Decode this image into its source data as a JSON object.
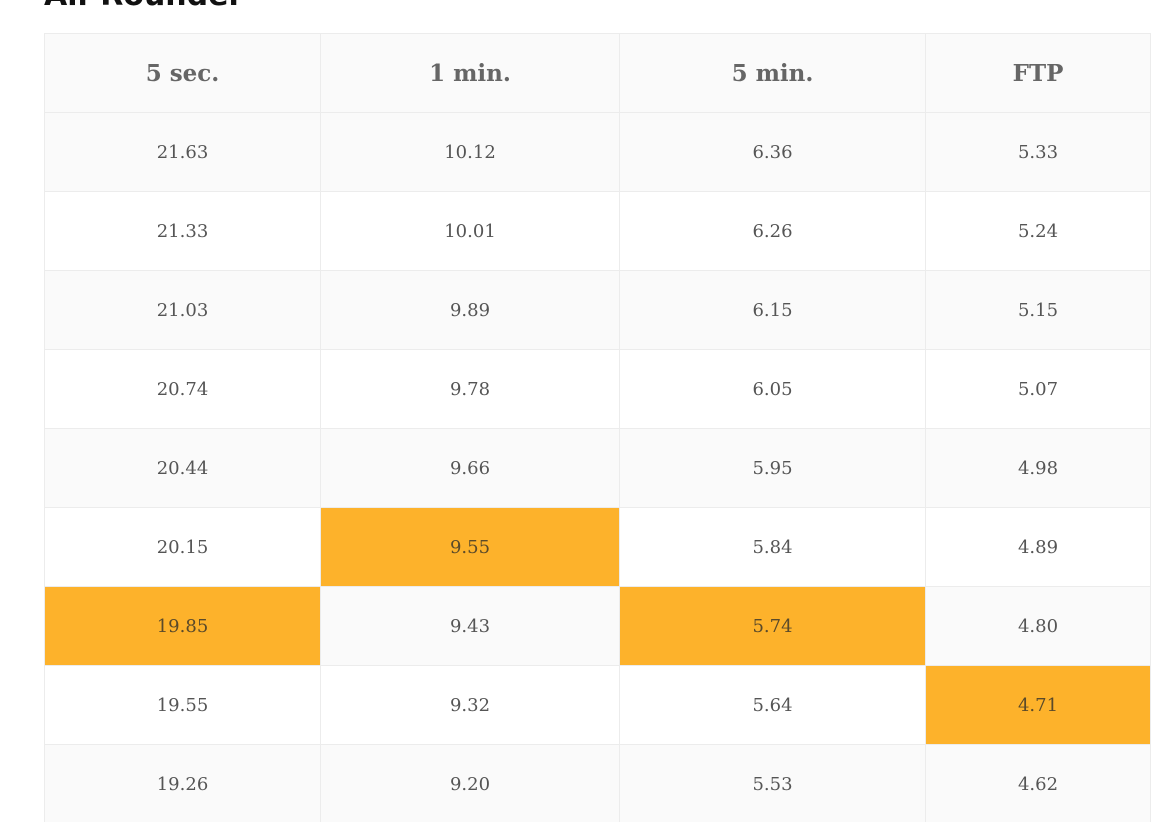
{
  "heading": "All-Rounder",
  "table": {
    "columns": [
      "5 sec.",
      "1 min.",
      "5 min.",
      "FTP"
    ],
    "rows": [
      [
        "21.63",
        "10.12",
        "6.36",
        "5.33"
      ],
      [
        "21.33",
        "10.01",
        "6.26",
        "5.24"
      ],
      [
        "21.03",
        "9.89",
        "6.15",
        "5.15"
      ],
      [
        "20.74",
        "9.78",
        "6.05",
        "5.07"
      ],
      [
        "20.44",
        "9.66",
        "5.95",
        "4.98"
      ],
      [
        "20.15",
        "9.55",
        "5.84",
        "4.89"
      ],
      [
        "19.85",
        "9.43",
        "5.74",
        "4.80"
      ],
      [
        "19.55",
        "9.32",
        "5.64",
        "4.71"
      ],
      [
        "19.26",
        "9.20",
        "5.53",
        "4.62"
      ]
    ],
    "highlighted_cells": [
      {
        "row": 5,
        "col": 1
      },
      {
        "row": 6,
        "col": 0
      },
      {
        "row": 6,
        "col": 2
      },
      {
        "row": 7,
        "col": 3
      }
    ],
    "highlight_color": "#fdb22b"
  }
}
